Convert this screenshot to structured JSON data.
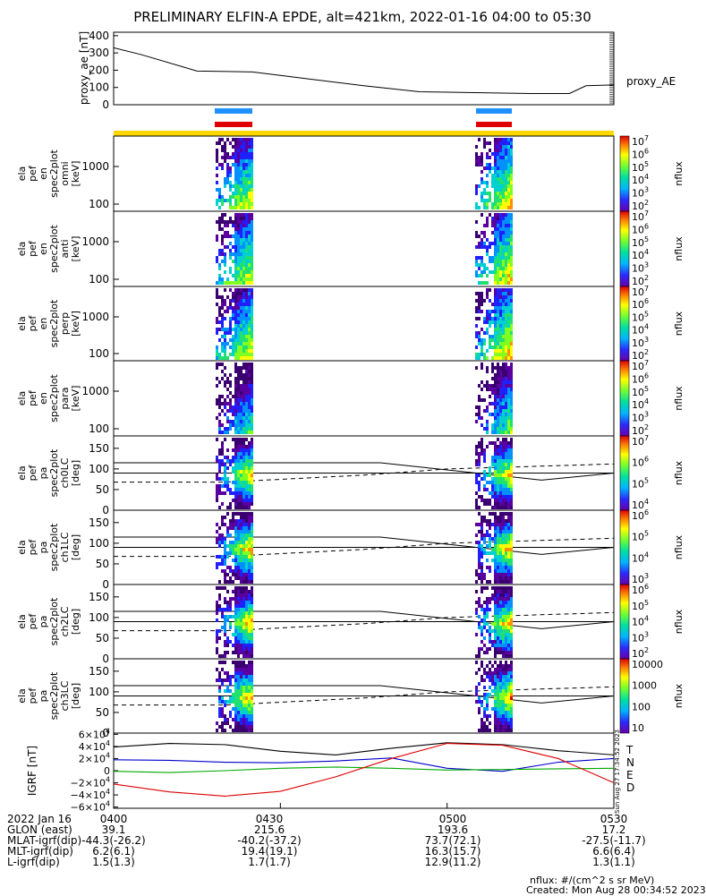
{
  "title": "PRELIMINARY ELFIN-A EPDE, alt=421km, 2022-01-16 04:00 to 05:30",
  "colors": {
    "frame": "#000000",
    "blue_bar": "#1e90ff",
    "red_bar": "#e00000",
    "yellow_bar": "#ffd700"
  },
  "chart_data": [
    {
      "type": "line",
      "panel": "proxy_ae",
      "ylabel": [
        "proxy_ae",
        "[nT]"
      ],
      "yticks": [
        "400",
        "300",
        "200",
        "100",
        "0"
      ],
      "ylim": [
        0,
        420
      ],
      "legend": "proxy_AE",
      "x_unit": "minutes after 04:00 UT",
      "x": [
        0,
        5,
        15,
        25,
        35,
        45,
        55,
        65,
        75,
        82,
        85,
        90
      ],
      "y": [
        330,
        290,
        195,
        190,
        150,
        110,
        75,
        70,
        65,
        65,
        110,
        115
      ]
    },
    {
      "type": "heatmap",
      "panel": "omni energy spectrogram",
      "ylabel": [
        "ela",
        "pef",
        "en",
        "spec2plot",
        "omni",
        "[keV]"
      ],
      "yticks": [
        "1000",
        "100"
      ],
      "colorbar": {
        "label": "nflux",
        "ticks": [
          "10^7",
          "10^6",
          "10^5",
          "10^4",
          "10^3",
          "10^2"
        ]
      }
    },
    {
      "type": "heatmap",
      "panel": "anti energy spectrogram",
      "ylabel": [
        "ela",
        "pef",
        "en",
        "spec2plot",
        "anti",
        "[keV]"
      ],
      "yticks": [
        "1000",
        "100"
      ],
      "colorbar": {
        "label": "nflux",
        "ticks": [
          "10^7",
          "10^6",
          "10^5",
          "10^4",
          "10^3",
          "10^2"
        ]
      }
    },
    {
      "type": "heatmap",
      "panel": "perp energy spectrogram",
      "ylabel": [
        "ela",
        "pef",
        "en",
        "spec2plot",
        "perp",
        "[keV]"
      ],
      "yticks": [
        "1000",
        "100"
      ],
      "colorbar": {
        "label": "nflux",
        "ticks": [
          "10^7",
          "10^6",
          "10^5",
          "10^4",
          "10^3",
          "10^2"
        ]
      }
    },
    {
      "type": "heatmap",
      "panel": "para energy spectrogram",
      "ylabel": [
        "ela",
        "pef",
        "en",
        "spec2plot",
        "para",
        "[keV]"
      ],
      "yticks": [
        "1000",
        "100"
      ],
      "colorbar": {
        "label": "nflux",
        "ticks": [
          "10^7",
          "10^6",
          "10^5",
          "10^4",
          "10^3",
          "10^2"
        ]
      }
    },
    {
      "type": "heatmap",
      "panel": "ch0LC pitch angle",
      "ylabel": [
        "ela",
        "pef",
        "pa",
        "spec2plot",
        "ch0LC",
        "[deg]"
      ],
      "yticks": [
        "150",
        "100",
        "50",
        "0"
      ],
      "colorbar": {
        "label": "nflux",
        "ticks": [
          "10^7",
          "10^6",
          "10^5",
          "10^4"
        ]
      }
    },
    {
      "type": "heatmap",
      "panel": "ch1LC pitch angle",
      "ylabel": [
        "ela",
        "pef",
        "pa",
        "spec2plot",
        "ch1LC",
        "[deg]"
      ],
      "yticks": [
        "150",
        "100",
        "50",
        "0"
      ],
      "colorbar": {
        "label": "nflux",
        "ticks": [
          "10^6",
          "10^5",
          "10^4",
          "10^3"
        ]
      }
    },
    {
      "type": "heatmap",
      "panel": "ch2LC pitch angle",
      "ylabel": [
        "ela",
        "pef",
        "pa",
        "spec2plot",
        "ch2LC",
        "[deg]"
      ],
      "yticks": [
        "150",
        "100",
        "50",
        "0"
      ],
      "colorbar": {
        "label": "nflux",
        "ticks": [
          "10^6",
          "10^5",
          "10^4",
          "10^3",
          "10^2"
        ]
      }
    },
    {
      "type": "heatmap",
      "panel": "ch3LC pitch angle",
      "ylabel": [
        "ela",
        "pef",
        "pa",
        "spec2plot",
        "ch3LC",
        "[deg]"
      ],
      "yticks": [
        "150",
        "100",
        "50",
        "0"
      ],
      "colorbar": {
        "label": "nflux",
        "ticks": [
          "10000",
          "1000",
          "100",
          "10"
        ]
      }
    },
    {
      "type": "line",
      "panel": "IGRF",
      "ylabel": [
        "IGRF",
        "[nT]"
      ],
      "yticks": [
        "6×10^4",
        "4×10^4",
        "2×10^4",
        "0",
        "−2×10^4",
        "−4×10^4",
        "−6×10^4"
      ],
      "ylim": [
        -62000,
        62000
      ],
      "legend": [
        "T",
        "N",
        "E",
        "D"
      ],
      "series": [
        {
          "name": "T",
          "color": "#000000",
          "x": [
            0,
            10,
            20,
            30,
            40,
            50,
            60,
            70,
            80,
            90
          ],
          "values": [
            39000,
            45000,
            43000,
            32000,
            26000,
            37000,
            46000,
            43000,
            33000,
            26000
          ]
        },
        {
          "name": "N",
          "color": "#0000cc",
          "x": [
            0,
            10,
            20,
            30,
            40,
            50,
            60,
            70,
            80,
            90
          ],
          "values": [
            18000,
            17000,
            14000,
            13000,
            16000,
            21000,
            4000,
            -1000,
            14000,
            20000
          ]
        },
        {
          "name": "E",
          "color": "#00aa00",
          "x": [
            0,
            10,
            20,
            30,
            40,
            50,
            60,
            70,
            80,
            90
          ],
          "values": [
            -1000,
            -3000,
            0,
            4000,
            6000,
            4000,
            1000,
            2000,
            3000,
            4000
          ]
        },
        {
          "name": "D",
          "color": "#dd0000",
          "x": [
            0,
            10,
            20,
            30,
            40,
            50,
            60,
            70,
            80,
            90
          ],
          "values": [
            -22000,
            -35000,
            -42000,
            -34000,
            -10000,
            20000,
            45000,
            42000,
            20000,
            -20000
          ]
        }
      ]
    }
  ],
  "time_axis": [
    "0400",
    "0430",
    "0500",
    "0530"
  ],
  "footer": {
    "rows": [
      {
        "label": "2022 Jan 16",
        "v": [
          "0400",
          "0430",
          "0500",
          "0530"
        ]
      },
      {
        "label": "GLON (east)",
        "v": [
          "39.1",
          "215.6",
          "193.6",
          "17.2"
        ]
      },
      {
        "label": "MLAT-igrf(dip)",
        "v": [
          "-44.3(-26.2)",
          "-40.2(-37.2)",
          "73.7(72.1)",
          "-27.5(-11.7)"
        ]
      },
      {
        "label": "MLT-igrf(dip)",
        "v": [
          "6.2(6.1)",
          "19.4(19.1)",
          "16.3(15.7)",
          "6.6(6.4)"
        ]
      },
      {
        "label": "L-igrf(dip)",
        "v": [
          "1.5(1.3)",
          "1.7(1.7)",
          "12.9(11.2)",
          "1.3(1.1)"
        ]
      }
    ],
    "nflux_note": "nflux: #/(cm^2 s sr MeV)",
    "created": "Created: Mon Aug 28 00:34:52 2023",
    "side_stamp": "Sun Aug 27 17:34:52 2023"
  }
}
